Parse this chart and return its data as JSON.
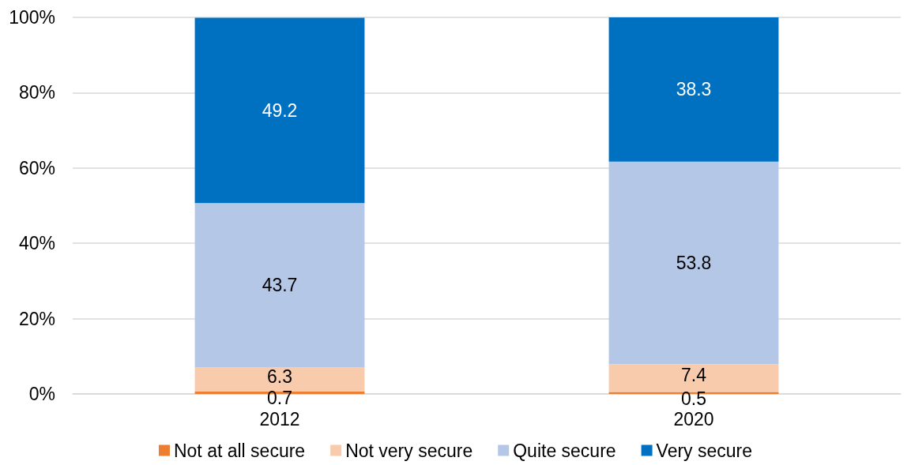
{
  "chart_data": {
    "type": "bar",
    "stacked": true,
    "categories": [
      "2012",
      "2020"
    ],
    "series": [
      {
        "name": "Not at all secure",
        "color": "#ed7d31",
        "values": [
          0.7,
          0.5
        ]
      },
      {
        "name": "Not very secure",
        "color": "#f8cbad",
        "values": [
          6.3,
          7.4
        ]
      },
      {
        "name": "Quite secure",
        "color": "#b4c7e7",
        "values": [
          43.7,
          53.8
        ]
      },
      {
        "name": "Very secure",
        "color": "#0070c0",
        "values": [
          49.2,
          38.3
        ]
      }
    ],
    "ylim": [
      0,
      100
    ],
    "yticks": [
      {
        "value": 0,
        "label": "0%"
      },
      {
        "value": 20,
        "label": "20%"
      },
      {
        "value": 40,
        "label": "40%"
      },
      {
        "value": 60,
        "label": "60%"
      },
      {
        "value": 80,
        "label": "80%"
      },
      {
        "value": 100,
        "label": "100%"
      }
    ],
    "grid": "y",
    "legend": "bottom",
    "data_labels": true
  }
}
